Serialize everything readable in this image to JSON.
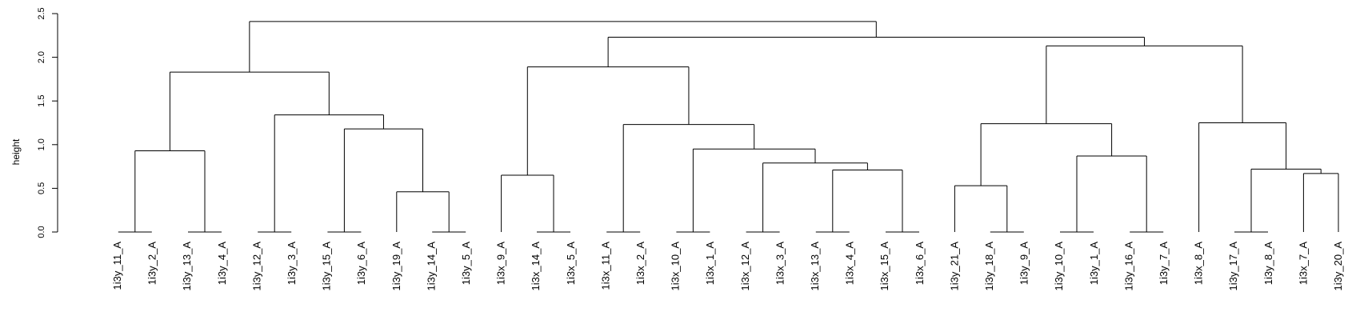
{
  "chart_data": {
    "type": "dendrogram",
    "ylabel": "height",
    "ylim": [
      0,
      2.5
    ],
    "yticks": [
      "0.0",
      "0.5",
      "1.0",
      "1.5",
      "2.0",
      "2.5"
    ],
    "ytick_values": [
      0,
      0.5,
      1.0,
      1.5,
      2.0,
      2.5
    ],
    "leaves": [
      "1i3y_11_A",
      "1i3y_2_A",
      "1i3y_13_A",
      "1i3y_4_A",
      "1i3y_12_A",
      "1i3y_3_A",
      "1i3y_15_A",
      "1i3y_6_A",
      "1i3y_19_A",
      "1i3y_14_A",
      "1i3y_5_A",
      "1i3x_9_A",
      "1i3x_14_A",
      "1i3x_5_A",
      "1i3x_11_A",
      "1i3x_2_A",
      "1i3x_10_A",
      "1i3x_1_A",
      "1i3x_12_A",
      "1i3x_3_A",
      "1i3x_13_A",
      "1i3x_4_A",
      "1i3x_15_A",
      "1i3x_6_A",
      "1i3y_21_A",
      "1i3y_18_A",
      "1i3y_9_A",
      "1i3y_10_A",
      "1i3y_1_A",
      "1i3y_16_A",
      "1i3y_7_A",
      "1i3x_8_A",
      "1i3y_17_A",
      "1i3y_8_A",
      "1i3x_7_A",
      "1i3y_20_A"
    ],
    "merges": [
      {
        "left": "1i3y_11_A",
        "right": "1i3y_2_A",
        "height": 0.0
      },
      {
        "left": "1i3y_13_A",
        "right": "1i3y_4_A",
        "height": 0.0
      },
      {
        "left": "1i3y_12_A",
        "right": "1i3y_3_A",
        "height": 0.0
      },
      {
        "left": "1i3y_15_A",
        "right": "1i3y_6_A",
        "height": 0.0
      },
      {
        "left": "1i3y_14_A",
        "right": "1i3y_5_A",
        "height": 0.0
      },
      {
        "left": "1i3x_14_A",
        "right": "1i3x_5_A",
        "height": 0.0
      },
      {
        "left": "1i3x_11_A",
        "right": "1i3x_2_A",
        "height": 0.0
      },
      {
        "left": "1i3x_10_A",
        "right": "1i3x_1_A",
        "height": 0.0
      },
      {
        "left": "1i3x_12_A",
        "right": "1i3x_3_A",
        "height": 0.0
      },
      {
        "left": "1i3x_13_A",
        "right": "1i3x_4_A",
        "height": 0.0
      },
      {
        "left": "1i3x_15_A",
        "right": "1i3x_6_A",
        "height": 0.0
      },
      {
        "left": "1i3y_18_A",
        "right": "1i3y_9_A",
        "height": 0.0
      },
      {
        "left": "1i3y_10_A",
        "right": "1i3y_1_A",
        "height": 0.0
      },
      {
        "left": "1i3y_16_A",
        "right": "1i3y_7_A",
        "height": 0.0
      },
      {
        "left": "1i3y_17_A",
        "right": "1i3y_8_A",
        "height": 0.0
      },
      {
        "left": "1i3y_19_A",
        "right": {
          "left": "1i3y_14_A",
          "right": "1i3y_5_A"
        },
        "height": 0.46
      },
      {
        "left": "1i3y_21_A",
        "right": {
          "left": "1i3y_18_A",
          "right": "1i3y_9_A"
        },
        "height": 0.53
      },
      {
        "left": "1i3x_9_A",
        "right": {
          "left": "1i3x_14_A",
          "right": "1i3x_5_A"
        },
        "height": 0.65
      },
      {
        "left": "1i3x_7_A",
        "right": "1i3y_20_A",
        "height": 0.67
      }
    ],
    "tree": {
      "h": 2.41,
      "c": [
        {
          "h": 1.83,
          "c": [
            {
              "h": 0.93,
              "c": [
                {
                  "h": 0,
                  "c": [
                    {
                      "leaf": 0
                    },
                    {
                      "leaf": 1
                    }
                  ]
                },
                {
                  "h": 0,
                  "c": [
                    {
                      "leaf": 2
                    },
                    {
                      "leaf": 3
                    }
                  ]
                }
              ]
            },
            {
              "h": 1.34,
              "c": [
                {
                  "h": 0,
                  "c": [
                    {
                      "leaf": 4
                    },
                    {
                      "leaf": 5
                    }
                  ]
                },
                {
                  "h": 1.18,
                  "c": [
                    {
                      "h": 0,
                      "c": [
                        {
                          "leaf": 6
                        },
                        {
                          "leaf": 7
                        }
                      ]
                    },
                    {
                      "h": 0.46,
                      "c": [
                        {
                          "leaf": 8
                        },
                        {
                          "h": 0,
                          "c": [
                            {
                              "leaf": 9
                            },
                            {
                              "leaf": 10
                            }
                          ]
                        }
                      ]
                    }
                  ]
                }
              ]
            }
          ]
        },
        {
          "h": 2.23,
          "c": [
            {
              "h": 1.89,
              "c": [
                {
                  "h": 0.65,
                  "c": [
                    {
                      "leaf": 11
                    },
                    {
                      "h": 0,
                      "c": [
                        {
                          "leaf": 12
                        },
                        {
                          "leaf": 13
                        }
                      ]
                    }
                  ]
                },
                {
                  "h": 1.23,
                  "c": [
                    {
                      "h": 0,
                      "c": [
                        {
                          "leaf": 14
                        },
                        {
                          "leaf": 15
                        }
                      ]
                    },
                    {
                      "h": 0.95,
                      "c": [
                        {
                          "h": 0,
                          "c": [
                            {
                              "leaf": 16
                            },
                            {
                              "leaf": 17
                            }
                          ]
                        },
                        {
                          "h": 0.79,
                          "c": [
                            {
                              "h": 0,
                              "c": [
                                {
                                  "leaf": 18
                                },
                                {
                                  "leaf": 19
                                }
                              ]
                            },
                            {
                              "h": 0.71,
                              "c": [
                                {
                                  "h": 0,
                                  "c": [
                                    {
                                      "leaf": 20
                                    },
                                    {
                                      "leaf": 21
                                    }
                                  ]
                                },
                                {
                                  "h": 0,
                                  "c": [
                                    {
                                      "leaf": 22
                                    },
                                    {
                                      "leaf": 23
                                    }
                                  ]
                                }
                              ]
                            }
                          ]
                        }
                      ]
                    }
                  ]
                }
              ]
            },
            {
              "h": 2.13,
              "c": [
                {
                  "h": 1.24,
                  "c": [
                    {
                      "h": 0.53,
                      "c": [
                        {
                          "leaf": 24
                        },
                        {
                          "h": 0,
                          "c": [
                            {
                              "leaf": 25
                            },
                            {
                              "leaf": 26
                            }
                          ]
                        }
                      ]
                    },
                    {
                      "h": 0.87,
                      "c": [
                        {
                          "h": 0,
                          "c": [
                            {
                              "leaf": 27
                            },
                            {
                              "leaf": 28
                            }
                          ]
                        },
                        {
                          "h": 0,
                          "c": [
                            {
                              "leaf": 29
                            },
                            {
                              "leaf": 30
                            }
                          ]
                        }
                      ]
                    }
                  ]
                },
                {
                  "h": 1.25,
                  "c": [
                    {
                      "leaf": 31
                    },
                    {
                      "h": 0.72,
                      "c": [
                        {
                          "h": 0,
                          "c": [
                            {
                              "leaf": 32
                            },
                            {
                              "leaf": 33
                            }
                          ]
                        },
                        {
                          "h": 0.67,
                          "c": [
                            {
                              "leaf": 34
                            },
                            {
                              "leaf": 35
                            }
                          ]
                        }
                      ]
                    }
                  ]
                }
              ]
            }
          ]
        }
      ]
    }
  }
}
